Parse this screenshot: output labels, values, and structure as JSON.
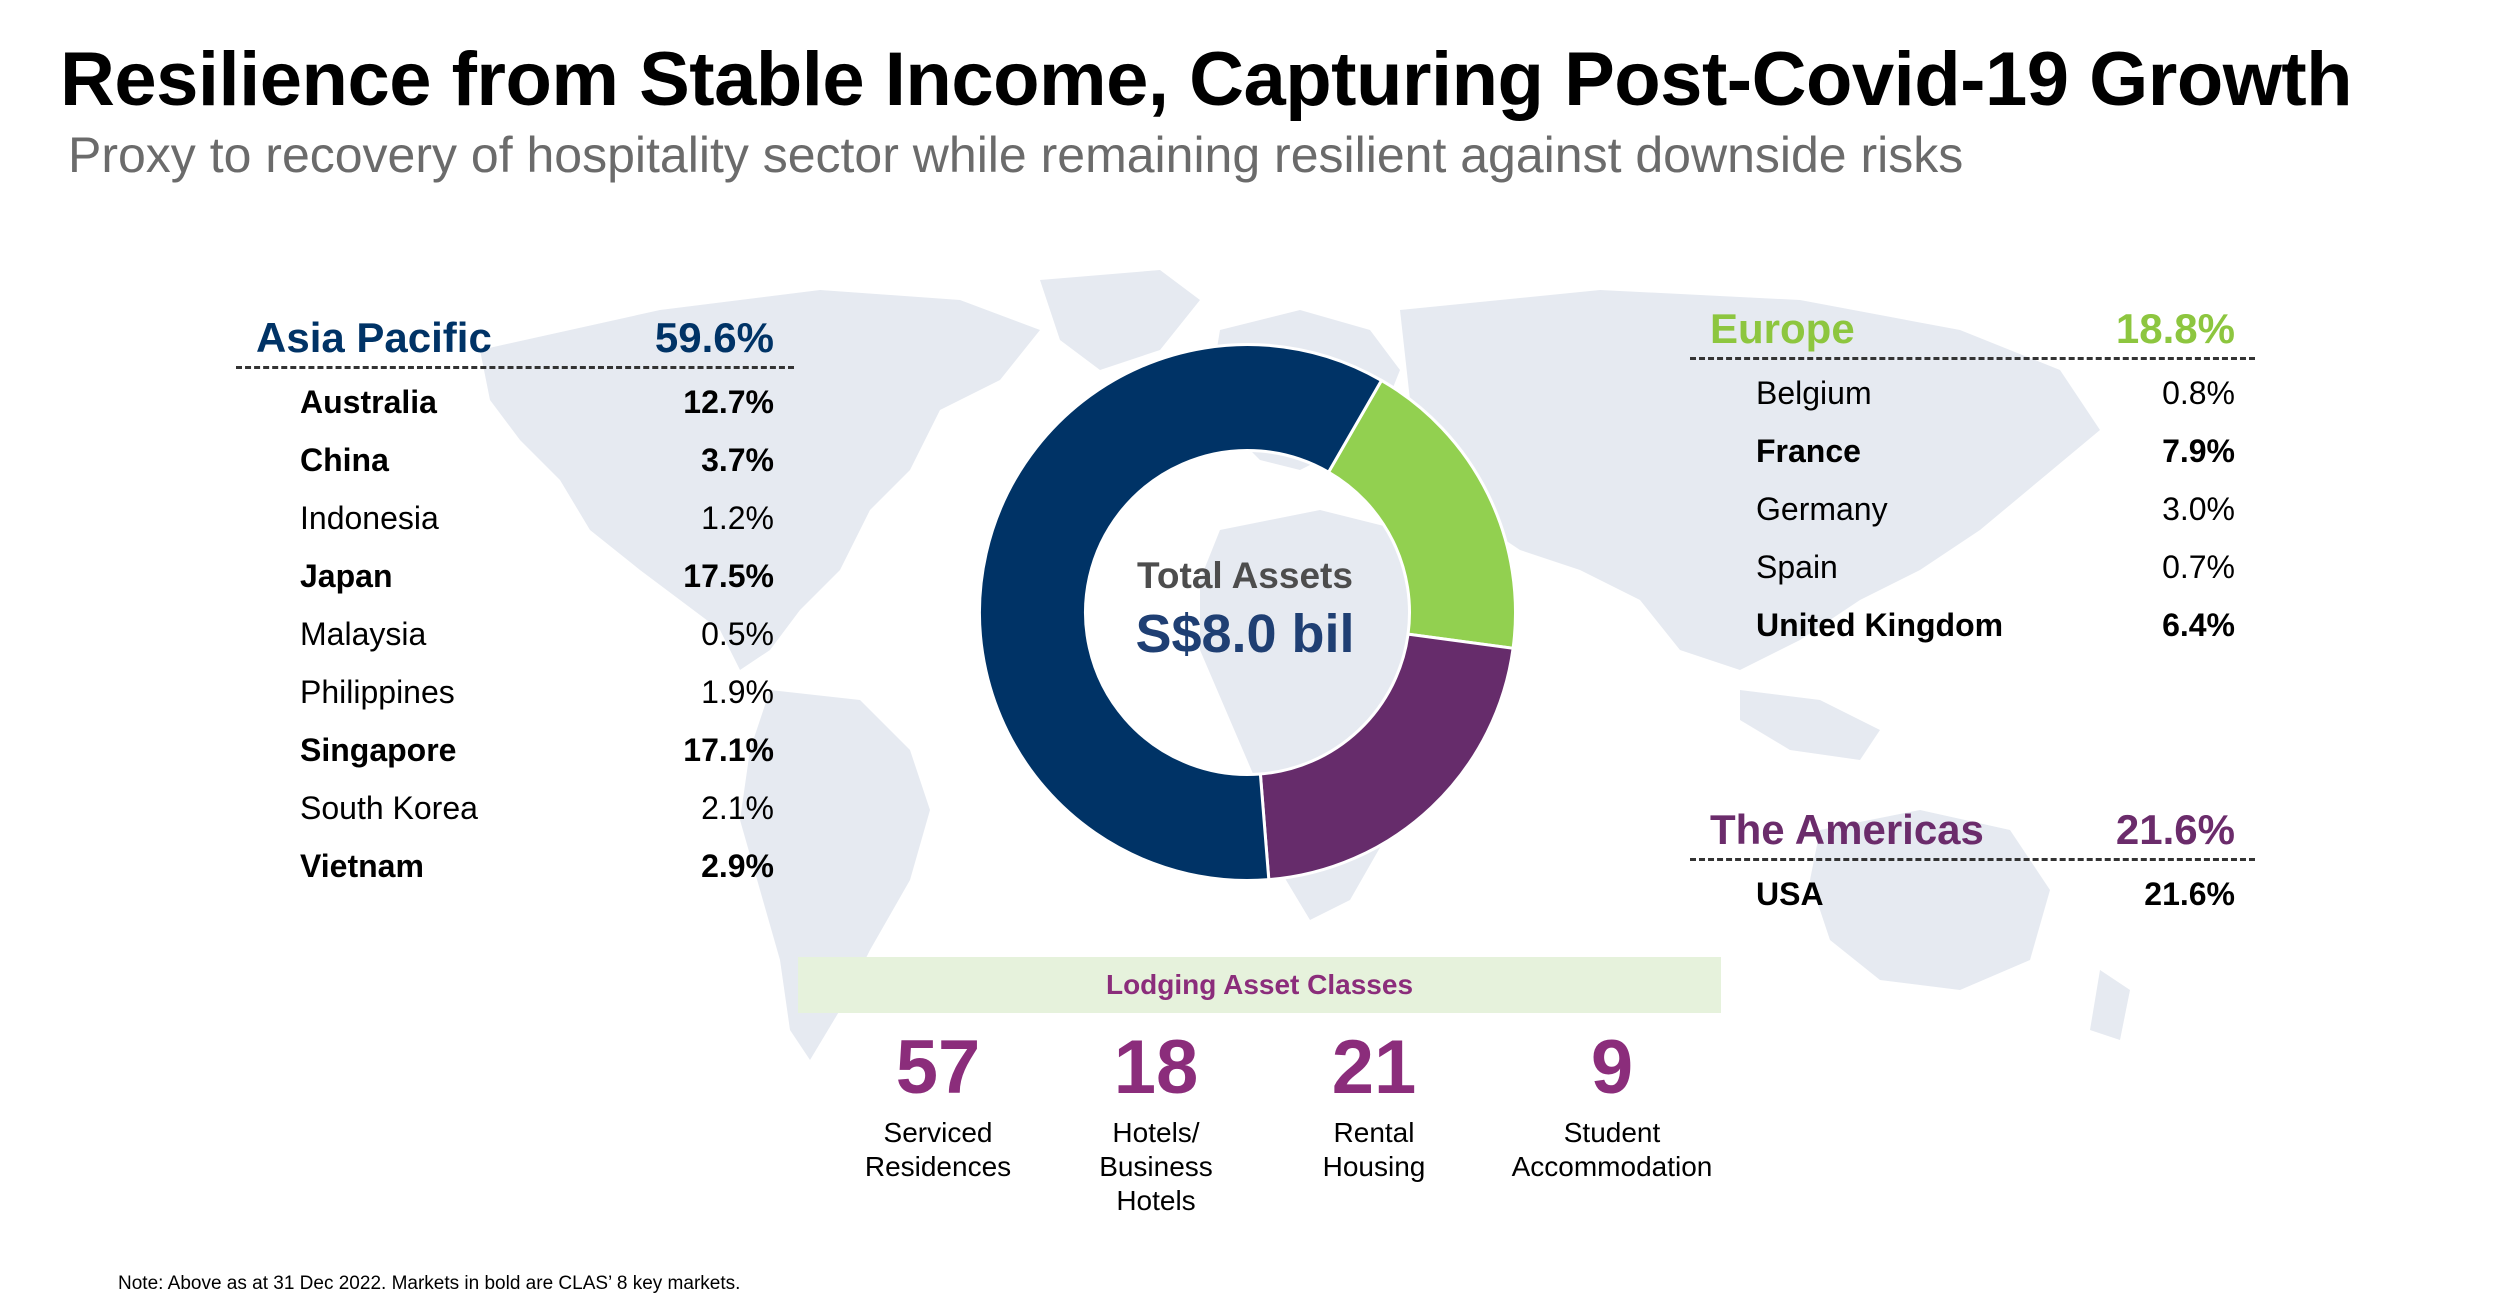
{
  "title": "Resilience from Stable Income, Capturing Post-Covid-19 Growth",
  "subtitle": "Proxy to recovery of hospitality sector while remaining resilient against downside risks",
  "regions": {
    "asia": {
      "name": "Asia Pacific",
      "pct": "59.6%",
      "color": "#003366",
      "rows": [
        {
          "country": "Australia",
          "pct": "12.7%",
          "bold": true
        },
        {
          "country": "China",
          "pct": "3.7%",
          "bold": true
        },
        {
          "country": "Indonesia",
          "pct": "1.2%",
          "bold": false
        },
        {
          "country": "Japan",
          "pct": "17.5%",
          "bold": true
        },
        {
          "country": "Malaysia",
          "pct": "0.5%",
          "bold": false
        },
        {
          "country": "Philippines",
          "pct": "1.9%",
          "bold": false
        },
        {
          "country": "Singapore",
          "pct": "17.1%",
          "bold": true
        },
        {
          "country": "South Korea",
          "pct": "2.1%",
          "bold": false
        },
        {
          "country": "Vietnam",
          "pct": "2.9%",
          "bold": true
        }
      ]
    },
    "europe": {
      "name": "Europe",
      "pct": "18.8%",
      "color": "#8dc63f",
      "rows": [
        {
          "country": "Belgium",
          "pct": "0.8%",
          "bold": false
        },
        {
          "country": "France",
          "pct": "7.9%",
          "bold": true
        },
        {
          "country": "Germany",
          "pct": "3.0%",
          "bold": false
        },
        {
          "country": "Spain",
          "pct": "0.7%",
          "bold": false
        },
        {
          "country": "United Kingdom",
          "pct": "6.4%",
          "bold": true
        }
      ]
    },
    "americas": {
      "name": "The Americas",
      "pct": "21.6%",
      "color": "#6b2c6b",
      "rows": [
        {
          "country": "USA",
          "pct": "21.6%",
          "bold": true
        }
      ]
    }
  },
  "center": {
    "label": "Total Assets",
    "value": "S$8.0 bil"
  },
  "lodging": {
    "title": "Lodging Asset Classes",
    "stats": [
      {
        "number": "57",
        "label": "Serviced\nResidences"
      },
      {
        "number": "18",
        "label": "Hotels/\nBusiness\nHotels"
      },
      {
        "number": "21",
        "label": "Rental\nHousing"
      },
      {
        "number": "9",
        "label": "Student\nAccommodation"
      }
    ]
  },
  "note": "Note:  Above as at 31 Dec 2022. Markets in bold are CLAS’ 8 key markets.",
  "chart_data": {
    "type": "pie",
    "labels": [
      "Asia Pacific",
      "Europe",
      "The Americas"
    ],
    "values": [
      59.6,
      18.8,
      21.6
    ],
    "order_clockwise_from_top_right": [
      "Europe",
      "The Americas",
      "Asia Pacific"
    ],
    "colors": {
      "Asia Pacific": "#003366",
      "Europe": "#92d050",
      "The Americas": "#662c6b"
    },
    "donut": true
  },
  "colors": {
    "accent_purple": "#8b2d7b",
    "lodging_band": "#e6f2dc",
    "map": "#e6eaf1"
  }
}
